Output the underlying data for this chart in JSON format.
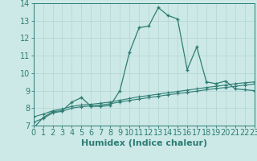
{
  "title": "",
  "xlabel": "Humidex (Indice chaleur)",
  "ylabel": "",
  "bg_color": "#cce9e7",
  "line_color": "#2e7d74",
  "grid_color": "#b8d8d5",
  "xlim": [
    0,
    23
  ],
  "ylim": [
    7,
    14
  ],
  "yticks": [
    7,
    8,
    9,
    10,
    11,
    12,
    13,
    14
  ],
  "xticks": [
    0,
    1,
    2,
    3,
    4,
    5,
    6,
    7,
    8,
    9,
    10,
    11,
    12,
    13,
    14,
    15,
    16,
    17,
    18,
    19,
    20,
    21,
    22,
    23
  ],
  "line1_x": [
    0,
    1,
    2,
    3,
    4,
    5,
    6,
    7,
    8,
    9,
    10,
    11,
    12,
    13,
    14,
    15,
    16,
    17,
    18,
    19,
    20,
    21,
    22,
    23
  ],
  "line1_y": [
    6.85,
    7.45,
    7.8,
    7.85,
    8.35,
    8.6,
    8.1,
    8.1,
    8.15,
    9.0,
    11.2,
    12.6,
    12.7,
    13.75,
    13.3,
    13.1,
    10.2,
    11.5,
    9.5,
    9.4,
    9.55,
    9.1,
    9.05,
    9.0
  ],
  "line2_x": [
    0,
    1,
    2,
    3,
    4,
    5,
    6,
    7,
    8,
    9,
    10,
    11,
    12,
    13,
    14,
    15,
    16,
    17,
    18,
    19,
    20,
    21,
    22,
    23
  ],
  "line2_y": [
    7.5,
    7.65,
    7.85,
    7.95,
    8.1,
    8.18,
    8.22,
    8.28,
    8.35,
    8.45,
    8.55,
    8.65,
    8.72,
    8.8,
    8.88,
    8.95,
    9.03,
    9.1,
    9.18,
    9.25,
    9.32,
    9.4,
    9.45,
    9.5
  ],
  "line3_x": [
    0,
    1,
    2,
    3,
    4,
    5,
    6,
    7,
    8,
    9,
    10,
    11,
    12,
    13,
    14,
    15,
    16,
    17,
    18,
    19,
    20,
    21,
    22,
    23
  ],
  "line3_y": [
    7.2,
    7.4,
    7.72,
    7.82,
    8.0,
    8.08,
    8.12,
    8.18,
    8.25,
    8.35,
    8.44,
    8.52,
    8.6,
    8.68,
    8.76,
    8.83,
    8.9,
    8.97,
    9.05,
    9.12,
    9.18,
    9.25,
    9.32,
    9.38
  ],
  "xlabel_fontsize": 8,
  "tick_fontsize": 7
}
